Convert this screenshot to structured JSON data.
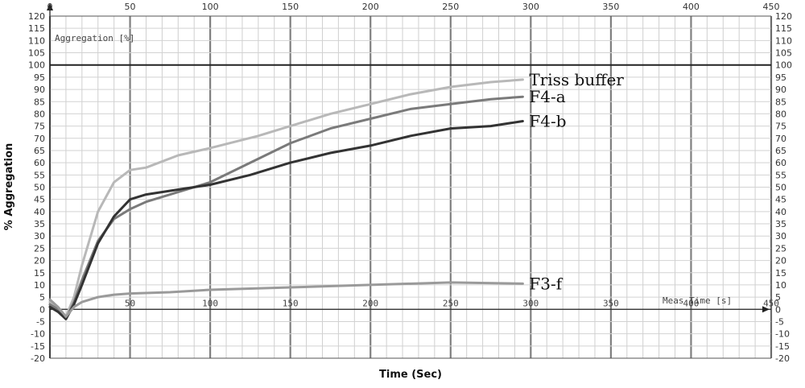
{
  "chart_data": {
    "type": "line",
    "xlabel": "Time (Sec)",
    "ylabel": "% Aggregation",
    "inner_ylabel": "Aggregation [%]",
    "inner_xlabel": "Meas Time [s]",
    "xlim": [
      0,
      450
    ],
    "ylim": [
      -20,
      120
    ],
    "x_ticks": [
      0,
      50,
      100,
      150,
      200,
      250,
      300,
      350,
      400,
      450
    ],
    "y_ticks": [
      -20,
      -15,
      -10,
      -5,
      0,
      5,
      10,
      15,
      20,
      25,
      30,
      35,
      40,
      45,
      50,
      55,
      60,
      65,
      70,
      75,
      80,
      85,
      90,
      95,
      100,
      105,
      110,
      115,
      120
    ],
    "reference_line_y": 100,
    "grid": true,
    "series": [
      {
        "name": "Triss buffer",
        "color": "#b8b8b8",
        "x": [
          0,
          5,
          10,
          15,
          20,
          30,
          40,
          50,
          60,
          80,
          100,
          130,
          150,
          175,
          200,
          225,
          250,
          275,
          295
        ],
        "y": [
          3,
          1,
          -3,
          5,
          18,
          40,
          52,
          57,
          58,
          63,
          66,
          71,
          75,
          80,
          84,
          88,
          91,
          93,
          94
        ]
      },
      {
        "name": "F4-a",
        "color": "#7a7a7a",
        "x": [
          0,
          5,
          10,
          15,
          20,
          30,
          40,
          50,
          60,
          80,
          100,
          125,
          150,
          175,
          200,
          225,
          250,
          275,
          295
        ],
        "y": [
          2,
          0,
          -4,
          3,
          12,
          28,
          37,
          41,
          44,
          48,
          52,
          60,
          68,
          74,
          78,
          82,
          84,
          86,
          87
        ]
      },
      {
        "name": "F4-b",
        "color": "#333333",
        "x": [
          0,
          5,
          10,
          15,
          20,
          30,
          40,
          50,
          60,
          80,
          100,
          125,
          150,
          175,
          200,
          225,
          250,
          275,
          295
        ],
        "y": [
          1,
          -1,
          -4,
          2,
          10,
          27,
          38,
          45,
          47,
          49,
          51,
          55,
          60,
          64,
          67,
          71,
          74,
          75,
          77
        ]
      },
      {
        "name": "F3-f",
        "color": "#9a9a9a",
        "x": [
          0,
          5,
          10,
          15,
          20,
          30,
          40,
          50,
          75,
          100,
          150,
          200,
          250,
          295
        ],
        "y": [
          4,
          1,
          -3,
          1,
          3,
          5,
          6,
          6.5,
          7,
          8,
          9,
          10,
          11,
          10.5
        ]
      }
    ]
  }
}
